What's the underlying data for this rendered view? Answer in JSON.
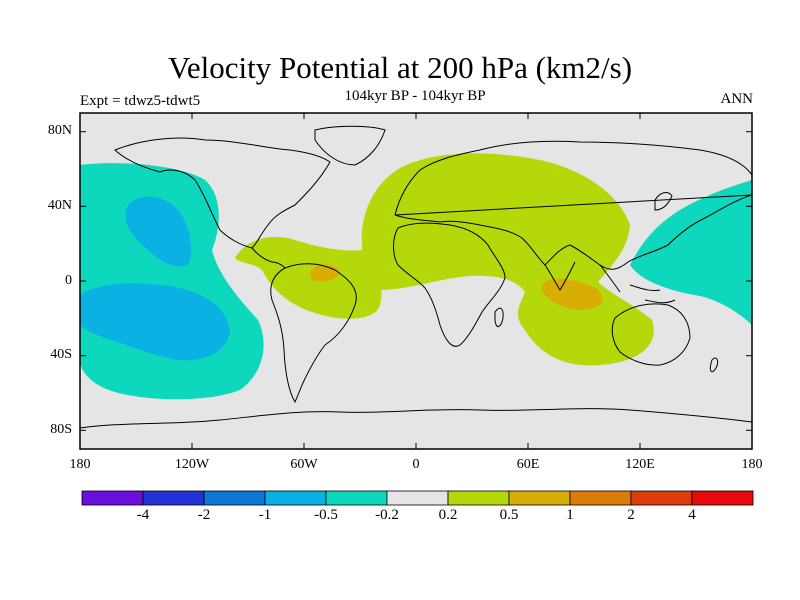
{
  "title": "Velocity Potential at 200 hPa (km2/s)",
  "subtitle": "104kyr BP - 104kyr BP",
  "experiment_label": "Expt = tdwz5-tdwt5",
  "season": "ANN",
  "lat_labels": [
    "80N",
    "40N",
    "0",
    "40S",
    "80S"
  ],
  "lon_labels": [
    "180",
    "120W",
    "60W",
    "0",
    "60E",
    "120E",
    "180"
  ],
  "colorbar": {
    "labels": [
      "-4",
      "-2",
      "-1",
      "-0.5",
      "-0.2",
      "0.2",
      "0.5",
      "1",
      "2",
      "4"
    ],
    "colors": [
      "#6a0fdc",
      "#2431d6",
      "#0d78d6",
      "#0ab1e2",
      "#0dd8bd",
      "#e5e5e5",
      "#b5d80a",
      "#d8ad05",
      "#dc7a0a",
      "#de3c0a",
      "#e80a0a"
    ]
  },
  "map_colors": {
    "background": "#e5e5e5",
    "neg_light": "#0dd8bd",
    "neg_mid": "#0ab1e2",
    "pos_light": "#b5d80a",
    "pos_mid": "#d8ad05"
  }
}
